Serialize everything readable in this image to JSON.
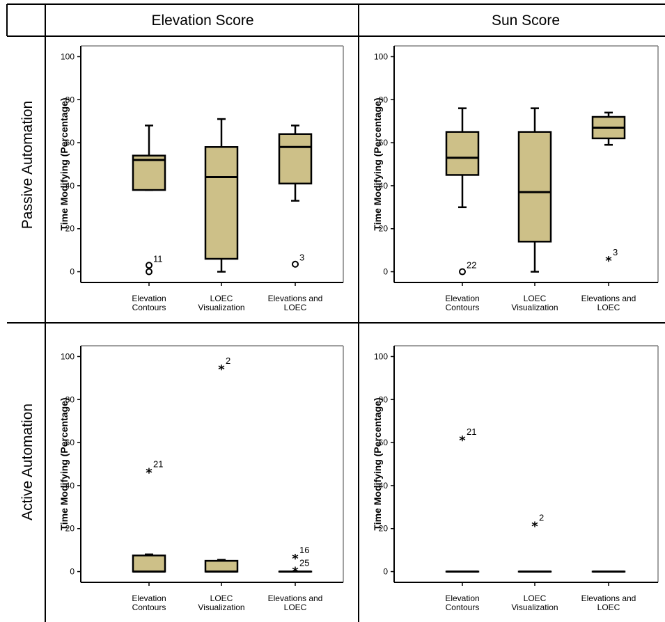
{
  "grid": {
    "col_headers": [
      "Elevation Score",
      "Sun Score"
    ],
    "row_headers": [
      "Passive Automation",
      "Active Automation"
    ]
  },
  "chart_data": [
    {
      "type": "boxplot",
      "panel": "passive-elevation",
      "ylabel": "Time Modifying (Percentage)",
      "ylim": [
        -5,
        105
      ],
      "yticks": [
        0,
        20,
        40,
        60,
        80,
        100
      ],
      "categories": [
        "Elevation\nContours",
        "LOEC\nVisualization",
        "Elevations and\nLOEC"
      ],
      "boxes": [
        {
          "min": 38,
          "q1": 38,
          "median": 52,
          "q3": 54,
          "max": 68
        },
        {
          "min": 0,
          "q1": 6,
          "median": 44,
          "q3": 58,
          "max": 71
        },
        {
          "min": 33,
          "q1": 41,
          "median": 58,
          "q3": 64,
          "max": 68
        }
      ],
      "outliers": [
        {
          "cat": 0,
          "y": 3,
          "marker": "circle",
          "label": "11"
        },
        {
          "cat": 0,
          "y": 0,
          "marker": "circle",
          "label": ""
        },
        {
          "cat": 2,
          "y": 3.5,
          "marker": "circle",
          "label": "3"
        }
      ]
    },
    {
      "type": "boxplot",
      "panel": "passive-sun",
      "ylabel": "Time Modifying (Percentage)",
      "ylim": [
        -5,
        105
      ],
      "yticks": [
        0,
        20,
        40,
        60,
        80,
        100
      ],
      "categories": [
        "Elevation\nContours",
        "LOEC\nVisualization",
        "Elevations and\nLOEC"
      ],
      "boxes": [
        {
          "min": 30,
          "q1": 45,
          "median": 53,
          "q3": 65,
          "max": 76
        },
        {
          "min": 0,
          "q1": 14,
          "median": 37,
          "q3": 65,
          "max": 76
        },
        {
          "min": 59,
          "q1": 62,
          "median": 67,
          "q3": 72,
          "max": 74
        }
      ],
      "outliers": [
        {
          "cat": 0,
          "y": 0,
          "marker": "circle",
          "label": "22"
        },
        {
          "cat": 2,
          "y": 6,
          "marker": "star",
          "label": "3"
        }
      ]
    },
    {
      "type": "boxplot",
      "panel": "active-elevation",
      "ylabel": "Time Modifying (Percentage)",
      "ylim": [
        -5,
        105
      ],
      "yticks": [
        0,
        20,
        40,
        60,
        80,
        100
      ],
      "categories": [
        "Elevation\nContours",
        "LOEC\nVisualization",
        "Elevations and\nLOEC"
      ],
      "boxes": [
        {
          "min": 0,
          "q1": 0,
          "median": 0,
          "q3": 7.5,
          "max": 8
        },
        {
          "min": 0,
          "q1": 0,
          "median": 0,
          "q3": 5,
          "max": 5.5
        },
        {
          "min": 0,
          "q1": 0,
          "median": 0,
          "q3": 0,
          "max": 0
        }
      ],
      "outliers": [
        {
          "cat": 0,
          "y": 47,
          "marker": "star",
          "label": "21"
        },
        {
          "cat": 1,
          "y": 95,
          "marker": "star",
          "label": "2"
        },
        {
          "cat": 2,
          "y": 7,
          "marker": "star",
          "label": "16"
        },
        {
          "cat": 2,
          "y": 1,
          "marker": "star",
          "label": "25"
        }
      ]
    },
    {
      "type": "boxplot",
      "panel": "active-sun",
      "ylabel": "Time Modifying (Percentage)",
      "ylim": [
        -5,
        105
      ],
      "yticks": [
        0,
        20,
        40,
        60,
        80,
        100
      ],
      "categories": [
        "Elevation\nContours",
        "LOEC\nVisualization",
        "Elevations and\nLOEC"
      ],
      "boxes": [
        {
          "min": 0,
          "q1": 0,
          "median": 0,
          "q3": 0,
          "max": 0
        },
        {
          "min": 0,
          "q1": 0,
          "median": 0,
          "q3": 0,
          "max": 0
        },
        {
          "min": 0,
          "q1": 0,
          "median": 0,
          "q3": 0,
          "max": 0
        }
      ],
      "outliers": [
        {
          "cat": 0,
          "y": 62,
          "marker": "star",
          "label": "21"
        },
        {
          "cat": 1,
          "y": 22,
          "marker": "star",
          "label": "2"
        }
      ]
    }
  ],
  "colors": {
    "box_fill": "#cdc088",
    "line": "#000000",
    "frame": "#808080"
  }
}
